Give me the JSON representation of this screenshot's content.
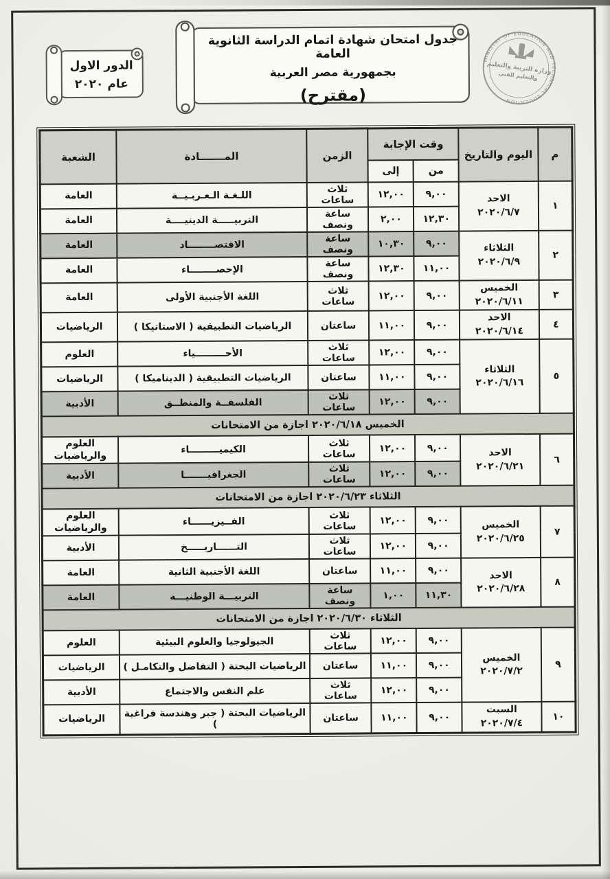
{
  "banner": {
    "title_line1": "جدول امتحان شهادة اتمام الدراسة الثانوية العامة",
    "title_line2": "بجمهورية مصر العربية",
    "title_line3": "(مقترح)",
    "session_line1": "الدور الاول",
    "session_line2": "عام ٢٠٢٠"
  },
  "seal": {
    "english": "MINISTRY OF EDUCATION AND TECHNICAL EDUCATION",
    "arabic_line1": "وزارة التربية والتعليم",
    "arabic_line2": "والتعليم الفني"
  },
  "colors": {
    "header_bg": "#cfd1c8",
    "shaded_row_bg": "#bfc2b8",
    "holiday_bg": "#c8cabf",
    "paper": "#eef0e9",
    "line": "#23231f"
  },
  "table": {
    "headers": {
      "serial": "م",
      "day_date": "اليوم والتاريخ",
      "answer_time": "وقت الإجابة",
      "from": "من",
      "to": "إلى",
      "duration": "الزمن",
      "subject": "المـــــــادة",
      "branch": "الشعبة"
    },
    "groups": [
      {
        "num": "١",
        "day": "الاحد",
        "date": "٢٠٢٠/٦/٧",
        "rows": [
          {
            "subject": "اللـغـة الـعـربـيــة",
            "duration": "ثلاث ساعات",
            "from": "٩,٠٠",
            "to": "١٢,٠٠",
            "branch": "العامة",
            "shaded": false
          },
          {
            "subject": "التربيـــــة الدينيــــة",
            "duration": "ساعة ونصف",
            "from": "١٢,٣٠",
            "to": "٢,٠٠",
            "branch": "العامة",
            "shaded": false
          }
        ]
      },
      {
        "num": "٢",
        "day": "الثلاثاء",
        "date": "٢٠٢٠/٦/٩",
        "rows": [
          {
            "subject": "الاقتصــــــــاد",
            "duration": "ساعة ونصف",
            "from": "٩,٠٠",
            "to": "١٠,٣٠",
            "branch": "العامة",
            "shaded": true
          },
          {
            "subject": "الإحصــــــــاء",
            "duration": "ساعة ونصف",
            "from": "١١,٠٠",
            "to": "١٢,٣٠",
            "branch": "العامة",
            "shaded": false
          }
        ]
      },
      {
        "num": "٣",
        "day": "الخميس",
        "date": "٢٠٢٠/٦/١١",
        "rows": [
          {
            "subject": "اللغة الأجنبية الأولى",
            "duration": "ثلاث ساعات",
            "from": "٩,٠٠",
            "to": "١٢,٠٠",
            "branch": "العامة",
            "shaded": false
          }
        ]
      },
      {
        "num": "٤",
        "day": "الاحد",
        "date": "٢٠٢٠/٦/١٤",
        "rows": [
          {
            "subject": "الرياضيات التطبيقية ( الاستاتيكا )",
            "duration": "ساعتان",
            "from": "٩,٠٠",
            "to": "١١,٠٠",
            "branch": "الرياضيات",
            "shaded": false
          }
        ]
      },
      {
        "num": "٥",
        "day": "الثلاثاء",
        "date": "٢٠٢٠/٦/١٦",
        "rows": [
          {
            "subject": "الأحـــــــــياء",
            "duration": "ثلاث ساعات",
            "from": "٩,٠٠",
            "to": "١٢,٠٠",
            "branch": "العلوم",
            "shaded": false
          },
          {
            "subject": "الرياضيات التطبيقية ( الديناميكا )",
            "duration": "ساعتان",
            "from": "٩,٠٠",
            "to": "١١,٠٠",
            "branch": "الرياضيات",
            "shaded": false
          },
          {
            "subject": "الفلسفــة والمنطــق",
            "duration": "ثلاث ساعات",
            "from": "٩,٠٠",
            "to": "١٢,٠٠",
            "branch": "الأدبية",
            "shaded": true
          }
        ]
      },
      {
        "holiday": "الخميس ٢٠٢٠/٦/١٨ اجازة من الامتحانات"
      },
      {
        "num": "٦",
        "day": "الاحد",
        "date": "٢٠٢٠/٦/٢١",
        "rows": [
          {
            "subject": "الكيميـــــــــاء",
            "duration": "ثلاث ساعات",
            "from": "٩,٠٠",
            "to": "١٢,٠٠",
            "branch": "العلوم والرياضيات",
            "shaded": false
          },
          {
            "subject": "الجغرافيـــــــا",
            "duration": "ثلاث ساعات",
            "from": "٩,٠٠",
            "to": "١٢,٠٠",
            "branch": "الأدبية",
            "shaded": true
          }
        ]
      },
      {
        "holiday": "الثلاثاء ٢٠٢٠/٦/٢٣ اجازة من الامتحانات"
      },
      {
        "num": "٧",
        "day": "الخميس",
        "date": "٢٠٢٠/٦/٢٥",
        "rows": [
          {
            "subject": "الفــيزيــــــاء",
            "duration": "ثلاث ساعات",
            "from": "٩,٠٠",
            "to": "١٢,٠٠",
            "branch": "العلوم والرياضيات",
            "shaded": false
          },
          {
            "subject": "التــــــاريـــــخ",
            "duration": "ثلاث ساعات",
            "from": "٩,٠٠",
            "to": "١٢,٠٠",
            "branch": "الأدبية",
            "shaded": false
          }
        ]
      },
      {
        "num": "٨",
        "day": "الاحد",
        "date": "٢٠٢٠/٦/٢٨",
        "rows": [
          {
            "subject": "اللغة الأجنبية الثانية",
            "duration": "ساعتان",
            "from": "٩,٠٠",
            "to": "١١,٠٠",
            "branch": "العامة",
            "shaded": false
          },
          {
            "subject": "التربيـــة الوطنيـــة",
            "duration": "ساعة ونصف",
            "from": "١١,٣٠",
            "to": "١,٠٠",
            "branch": "العامة",
            "shaded": true
          }
        ]
      },
      {
        "holiday": "الثلاثاء ٢٠٢٠/٦/٣٠ اجازة من الامتحانات"
      },
      {
        "num": "٩",
        "day": "الخميس",
        "date": "٢٠٢٠/٧/٢",
        "rows": [
          {
            "subject": "الجيولوجيا والعلوم البيئية",
            "duration": "ثلاث ساعات",
            "from": "٩,٠٠",
            "to": "١٢,٠٠",
            "branch": "العلوم",
            "shaded": false
          },
          {
            "subject": "الرياضيات البحتة ( التفاضل والتكامـل )",
            "duration": "ساعتان",
            "from": "٩,٠٠",
            "to": "١١,٠٠",
            "branch": "الرياضيات",
            "shaded": false
          },
          {
            "subject": "علم النفس والاجتماع",
            "duration": "ثلاث ساعات",
            "from": "٩,٠٠",
            "to": "١٢,٠٠",
            "branch": "الأدبية",
            "shaded": false
          }
        ]
      },
      {
        "num": "١٠",
        "day": "السبت",
        "date": "٢٠٢٠/٧/٤",
        "rows": [
          {
            "subject": "الرياضيات البحتة ( جبر وهندسة فراغية )",
            "duration": "ساعتان",
            "from": "٩,٠٠",
            "to": "١١,٠٠",
            "branch": "الرياضيات",
            "shaded": false
          }
        ]
      }
    ]
  }
}
